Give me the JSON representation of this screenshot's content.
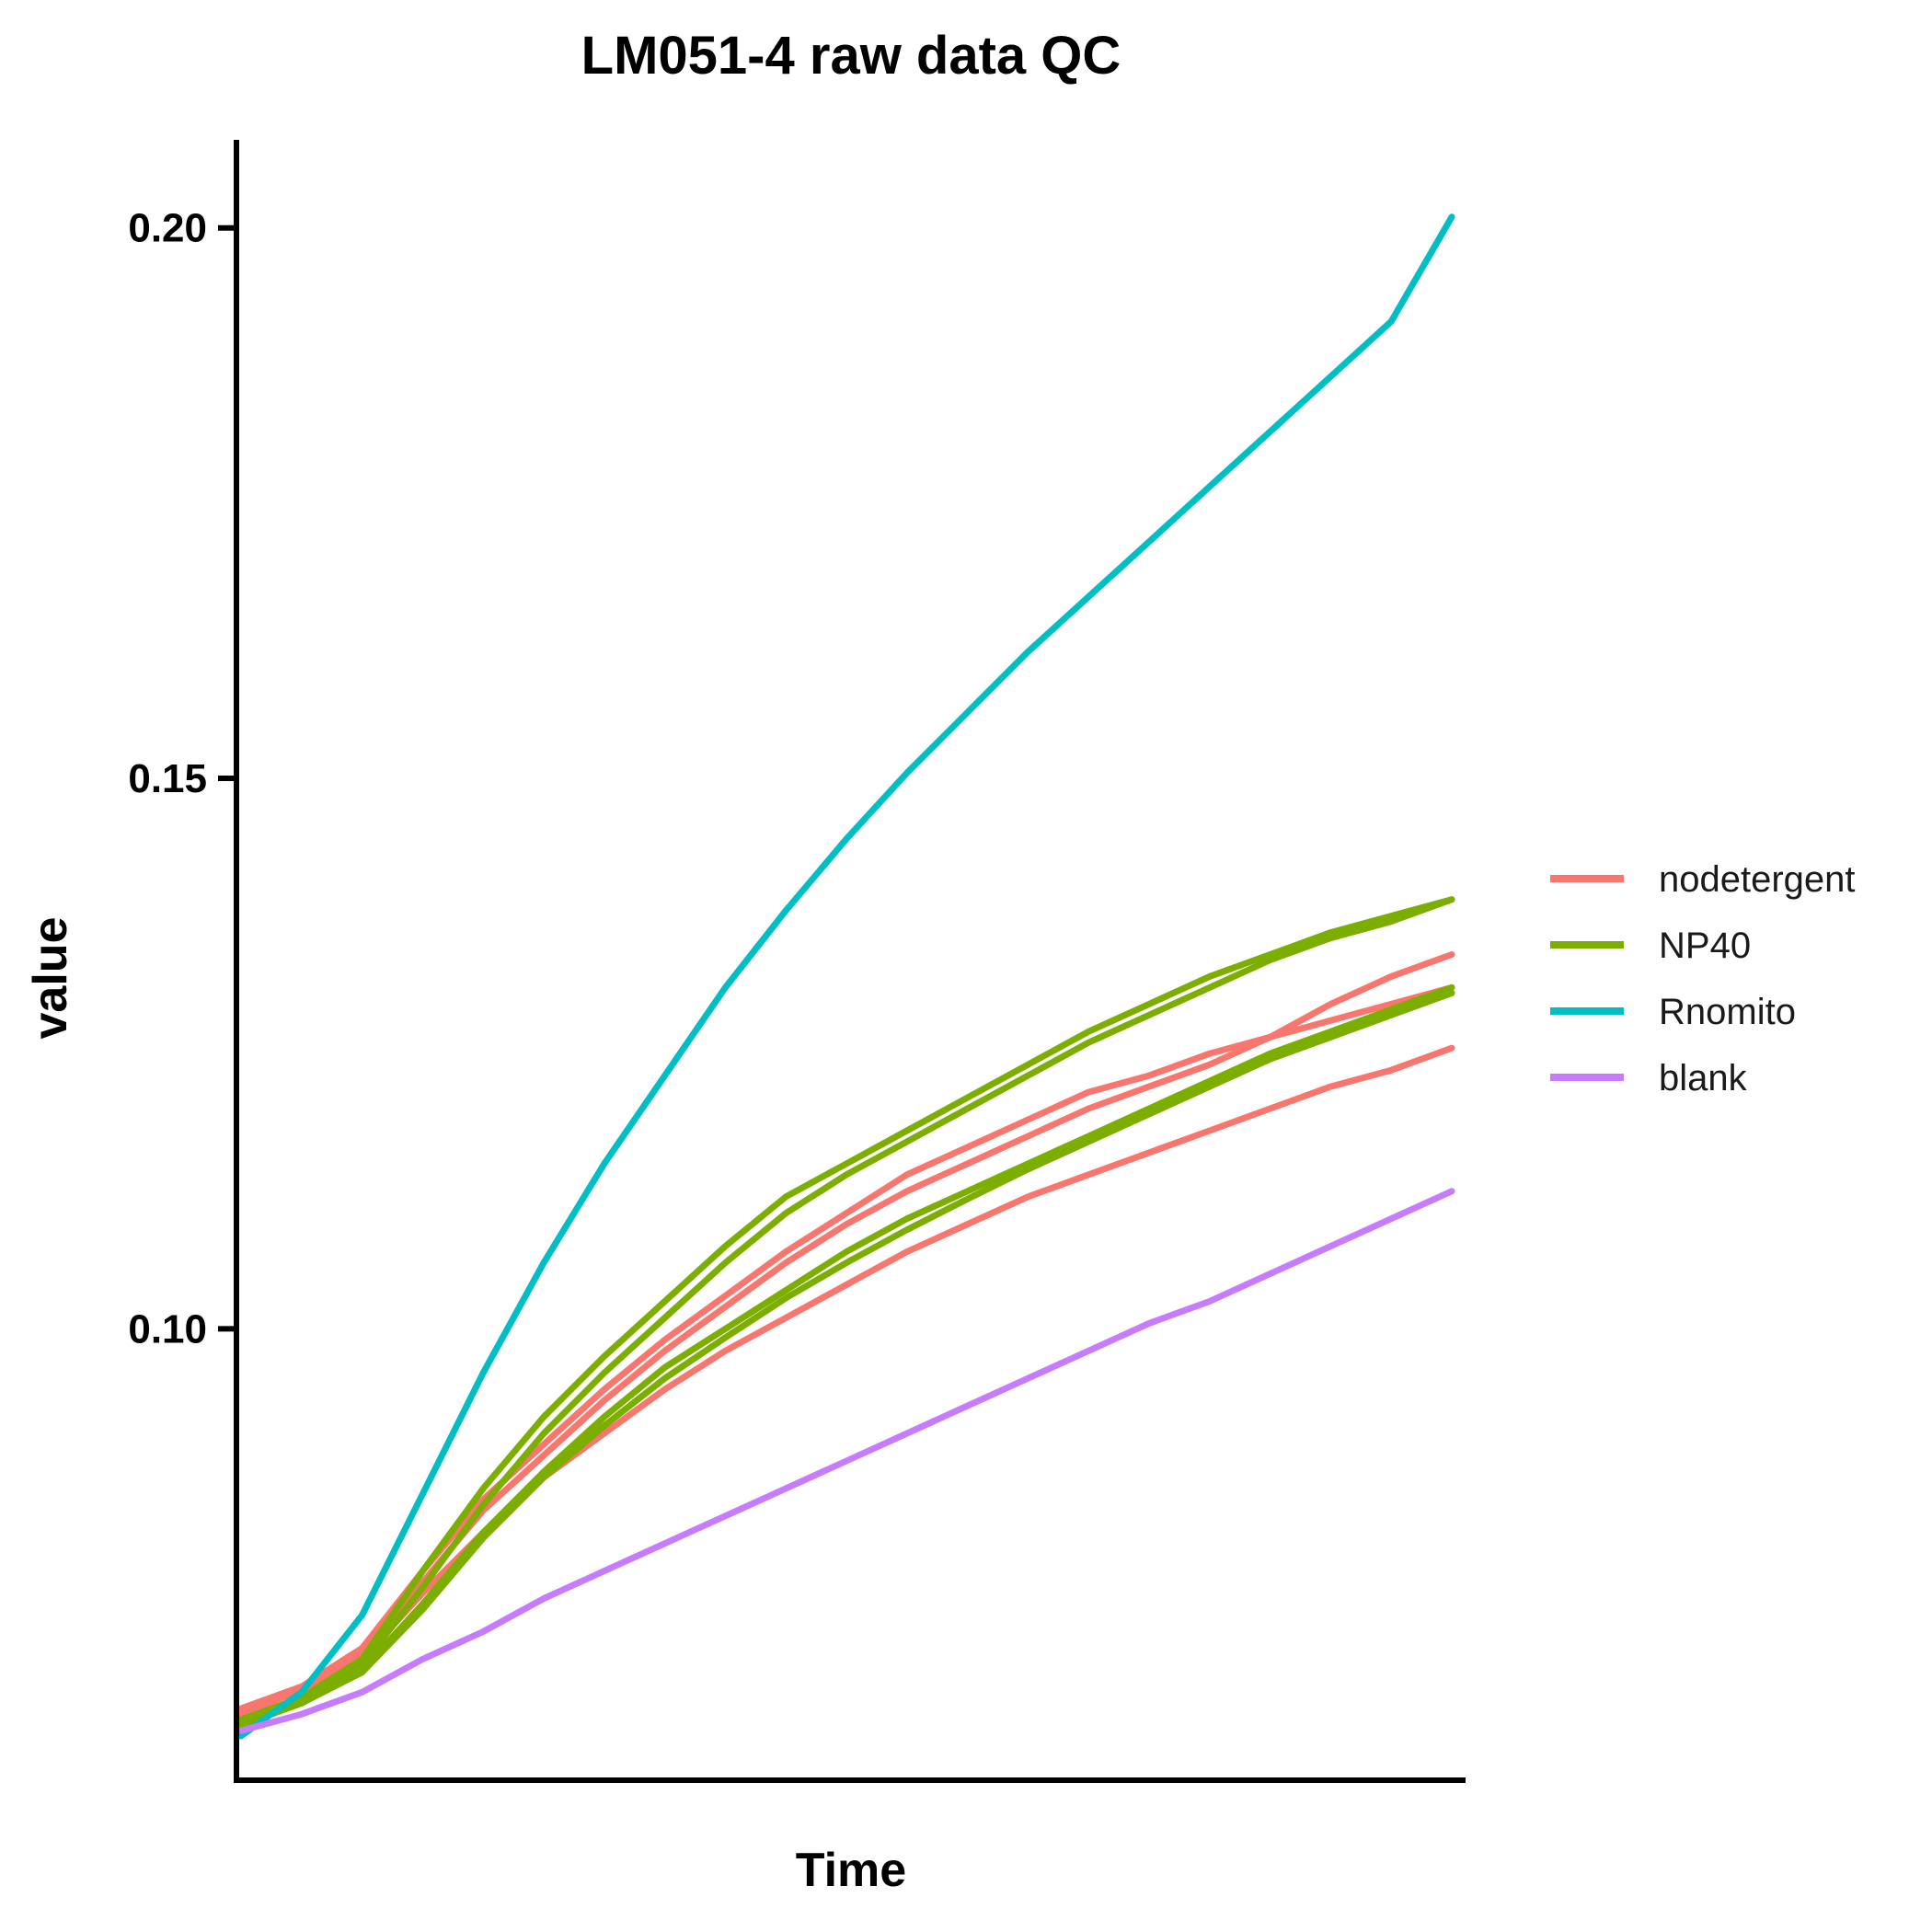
{
  "chart_data": {
    "type": "line",
    "title": "LM051-4 raw data QC",
    "xlabel": "Time",
    "ylabel": "value",
    "ylim": [
      0.059,
      0.208
    ],
    "xlim": [
      0,
      100
    ],
    "y_ticks": [
      "0.10",
      "0.15",
      "0.20"
    ],
    "grid": false,
    "legend_position": "right",
    "series": [
      {
        "name": "nodetergent",
        "color": "#F8766D",
        "x": [
          0,
          5,
          10,
          15,
          20,
          25,
          30,
          35,
          40,
          45,
          50,
          55,
          60,
          65,
          70,
          75,
          80,
          85,
          90,
          95,
          100
        ],
        "values": [
          0.0655,
          0.0675,
          0.071,
          0.078,
          0.0845,
          0.0895,
          0.0945,
          0.099,
          0.103,
          0.107,
          0.1105,
          0.114,
          0.1165,
          0.119,
          0.1215,
          0.123,
          0.125,
          0.1265,
          0.128,
          0.1295,
          0.131
        ]
      },
      {
        "name": "nodetergent",
        "color": "#F8766D",
        "x": [
          0,
          5,
          10,
          15,
          20,
          25,
          30,
          35,
          40,
          45,
          50,
          55,
          60,
          65,
          70,
          75,
          80,
          85,
          90,
          95,
          100
        ],
        "values": [
          0.0655,
          0.0675,
          0.07,
          0.076,
          0.0815,
          0.0865,
          0.0905,
          0.0945,
          0.098,
          0.101,
          0.104,
          0.107,
          0.1095,
          0.112,
          0.114,
          0.116,
          0.118,
          0.12,
          0.122,
          0.1235,
          0.1255
        ]
      },
      {
        "name": "nodetergent",
        "color": "#F8766D",
        "x": [
          0,
          5,
          10,
          15,
          20,
          25,
          30,
          35,
          40,
          45,
          50,
          55,
          60,
          65,
          70,
          75,
          80,
          85,
          90,
          95,
          100
        ],
        "values": [
          0.065,
          0.0672,
          0.0705,
          0.077,
          0.0835,
          0.0885,
          0.0935,
          0.098,
          0.102,
          0.106,
          0.1095,
          0.1125,
          0.115,
          0.1175,
          0.12,
          0.122,
          0.124,
          0.1265,
          0.1295,
          0.132,
          0.134
        ]
      },
      {
        "name": "NP40",
        "color": "#7CAE00",
        "x": [
          0,
          5,
          10,
          15,
          20,
          25,
          30,
          35,
          40,
          45,
          50,
          55,
          60,
          65,
          70,
          75,
          80,
          85,
          90,
          95,
          100
        ],
        "values": [
          0.0645,
          0.0665,
          0.07,
          0.078,
          0.0855,
          0.092,
          0.0975,
          0.1025,
          0.1075,
          0.112,
          0.115,
          0.118,
          0.121,
          0.124,
          0.127,
          0.1295,
          0.132,
          0.134,
          0.136,
          0.1375,
          0.139
        ]
      },
      {
        "name": "NP40",
        "color": "#7CAE00",
        "x": [
          0,
          5,
          10,
          15,
          20,
          25,
          30,
          35,
          40,
          45,
          50,
          55,
          60,
          65,
          70,
          75,
          80,
          85,
          90,
          95,
          100
        ],
        "values": [
          0.064,
          0.066,
          0.0695,
          0.0765,
          0.084,
          0.0905,
          0.096,
          0.101,
          0.106,
          0.1105,
          0.114,
          0.117,
          0.12,
          0.123,
          0.126,
          0.1285,
          0.131,
          0.1335,
          0.1355,
          0.137,
          0.139
        ]
      },
      {
        "name": "NP40",
        "color": "#7CAE00",
        "x": [
          0,
          5,
          10,
          15,
          20,
          25,
          30,
          35,
          40,
          45,
          50,
          55,
          60,
          65,
          70,
          75,
          80,
          85,
          90,
          95,
          100
        ],
        "values": [
          0.0645,
          0.0662,
          0.069,
          0.075,
          0.0815,
          0.087,
          0.092,
          0.0965,
          0.1,
          0.1035,
          0.107,
          0.11,
          0.1125,
          0.115,
          0.1175,
          0.12,
          0.1225,
          0.125,
          0.127,
          0.129,
          0.131
        ]
      },
      {
        "name": "NP40",
        "color": "#7CAE00",
        "x": [
          0,
          5,
          10,
          15,
          20,
          25,
          30,
          35,
          40,
          45,
          50,
          55,
          60,
          65,
          70,
          75,
          80,
          85,
          90,
          95,
          100
        ],
        "values": [
          0.064,
          0.066,
          0.0688,
          0.0745,
          0.081,
          0.0865,
          0.0912,
          0.0955,
          0.0992,
          0.1028,
          0.106,
          0.109,
          0.1118,
          0.1145,
          0.117,
          0.1195,
          0.122,
          0.1245,
          0.1265,
          0.1285,
          0.1305
        ]
      },
      {
        "name": "Rnomito",
        "color": "#00BFC4",
        "x": [
          0,
          5,
          10,
          15,
          20,
          25,
          30,
          35,
          40,
          45,
          50,
          55,
          60,
          65,
          70,
          75,
          80,
          85,
          90,
          95,
          100
        ],
        "values": [
          0.063,
          0.067,
          0.074,
          0.085,
          0.096,
          0.106,
          0.115,
          0.123,
          0.131,
          0.138,
          0.1445,
          0.1505,
          0.156,
          0.1615,
          0.1665,
          0.1715,
          0.1765,
          0.1815,
          0.1865,
          0.1915,
          0.201
        ]
      },
      {
        "name": "blank",
        "color": "#C77CFF",
        "x": [
          0,
          5,
          10,
          15,
          20,
          25,
          30,
          35,
          40,
          45,
          50,
          55,
          60,
          65,
          70,
          75,
          80,
          85,
          90,
          95,
          100
        ],
        "values": [
          0.0635,
          0.065,
          0.067,
          0.07,
          0.0725,
          0.0755,
          0.078,
          0.0805,
          0.083,
          0.0855,
          0.088,
          0.0905,
          0.093,
          0.0955,
          0.098,
          0.1005,
          0.1025,
          0.105,
          0.1075,
          0.11,
          0.1125
        ]
      }
    ],
    "legend": [
      {
        "name": "nodetergent",
        "color": "#F8766D"
      },
      {
        "name": "NP40",
        "color": "#7CAE00"
      },
      {
        "name": "Rnomito",
        "color": "#00BFC4"
      },
      {
        "name": "blank",
        "color": "#C77CFF"
      }
    ]
  }
}
